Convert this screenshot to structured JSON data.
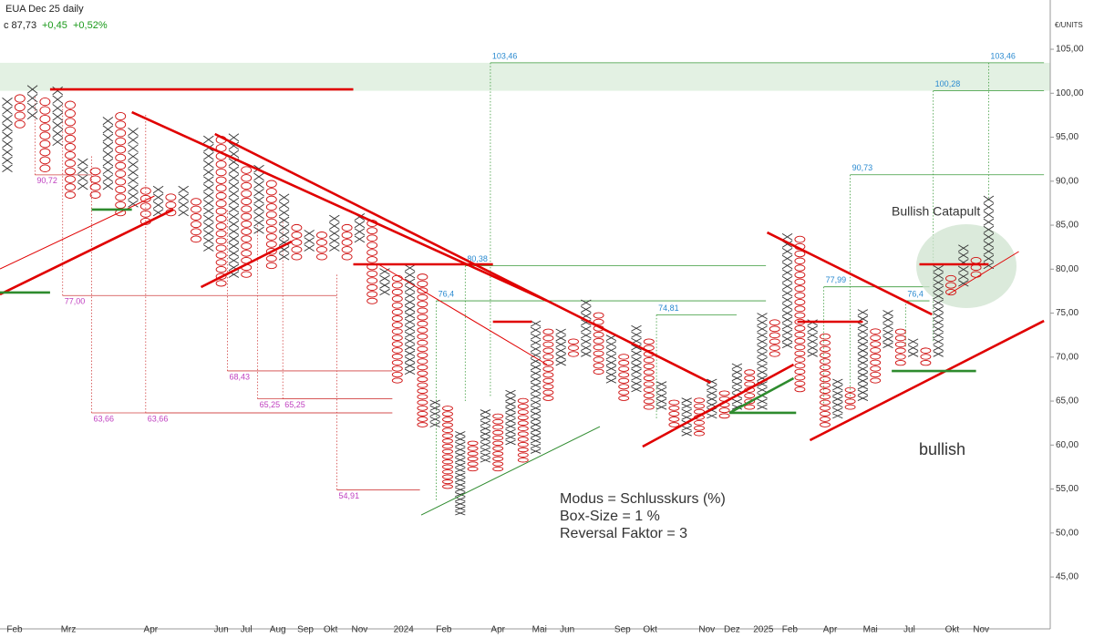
{
  "header": {
    "title": "EUA Dec 25 daily",
    "close": "c 87,73",
    "change": "+0,45",
    "change_pct": "+0,52%"
  },
  "chart_data": {
    "type": "point-and-figure",
    "y_unit": "€/UNITS",
    "ylim": [
      39.1,
      110.6
    ],
    "yticks": [
      {
        "value": 45,
        "label": "45,00"
      },
      {
        "value": 50,
        "label": "50,00"
      },
      {
        "value": 55,
        "label": "55,00"
      },
      {
        "value": 60,
        "label": "60,00"
      },
      {
        "value": 65,
        "label": "65,00"
      },
      {
        "value": 70,
        "label": "70,00"
      },
      {
        "value": 75,
        "label": "75,00"
      },
      {
        "value": 80,
        "label": "80,00"
      },
      {
        "value": 85,
        "label": "85,00"
      },
      {
        "value": 90,
        "label": "90,00"
      },
      {
        "value": 95,
        "label": "95,00"
      },
      {
        "value": 100,
        "label": "100,00"
      },
      {
        "value": 105,
        "label": "105,00"
      }
    ],
    "x_labels": [
      {
        "label": "Feb",
        "col": 0.58
      },
      {
        "label": "Mrz",
        "col": 4.86
      },
      {
        "label": "Apr",
        "col": 11.4
      },
      {
        "label": "Jun",
        "col": 17.0
      },
      {
        "label": "Jul",
        "col": 19.0
      },
      {
        "label": "Aug",
        "col": 21.5
      },
      {
        "label": "Sep",
        "col": 23.7
      },
      {
        "label": "Okt",
        "col": 25.7
      },
      {
        "label": "Nov",
        "col": 28.0
      },
      {
        "label": "2024",
        "col": 31.5
      },
      {
        "label": "Feb",
        "col": 34.7
      },
      {
        "label": "Apr",
        "col": 39.0
      },
      {
        "label": "Mai",
        "col": 42.3
      },
      {
        "label": "Jun",
        "col": 44.5
      },
      {
        "label": "Sep",
        "col": 48.9
      },
      {
        "label": "Okt",
        "col": 51.1
      },
      {
        "label": "Nov",
        "col": 55.6
      },
      {
        "label": "Dez",
        "col": 57.6
      },
      {
        "label": "2025",
        "col": 60.1
      },
      {
        "label": "Feb",
        "col": 62.2
      },
      {
        "label": "Apr",
        "col": 65.4
      },
      {
        "label": "Mai",
        "col": 68.6
      },
      {
        "label": "Jul",
        "col": 71.7
      },
      {
        "label": "Okt",
        "col": 75.1
      },
      {
        "label": "Nov",
        "col": 77.4
      }
    ],
    "x_color": "#333333",
    "o_color": "#d01010",
    "columns": [
      {
        "type": "X",
        "low": 91,
        "high": 99
      },
      {
        "type": "O",
        "low": 96,
        "high": 99
      },
      {
        "type": "X",
        "low": 97,
        "high": 100
      },
      {
        "type": "O",
        "low": 91,
        "high": 99
      },
      {
        "type": "X",
        "low": 94,
        "high": 100
      },
      {
        "type": "O",
        "low": 88,
        "high": 99
      },
      {
        "type": "X",
        "low": 89,
        "high": 92
      },
      {
        "type": "O",
        "low": 88,
        "high": 91
      },
      {
        "type": "X",
        "low": 89,
        "high": 97
      },
      {
        "type": "O",
        "low": 86,
        "high": 97
      },
      {
        "type": "X",
        "low": 87,
        "high": 96
      },
      {
        "type": "O",
        "low": 85,
        "high": 89
      },
      {
        "type": "X",
        "low": 86,
        "high": 89
      },
      {
        "type": "O",
        "low": 86,
        "high": 88
      },
      {
        "type": "X",
        "low": 86,
        "high": 89
      },
      {
        "type": "O",
        "low": 83,
        "high": 88
      },
      {
        "type": "X",
        "low": 82,
        "high": 95
      },
      {
        "type": "O",
        "low": 78,
        "high": 95
      },
      {
        "type": "X",
        "low": 79,
        "high": 95
      },
      {
        "type": "O",
        "low": 79,
        "high": 91
      },
      {
        "type": "X",
        "low": 84,
        "high": 91
      },
      {
        "type": "O",
        "low": 80,
        "high": 90
      },
      {
        "type": "X",
        "low": 81,
        "high": 88
      },
      {
        "type": "O",
        "low": 81,
        "high": 85
      },
      {
        "type": "X",
        "low": 82,
        "high": 84
      },
      {
        "type": "O",
        "low": 81,
        "high": 84
      },
      {
        "type": "X",
        "low": 82,
        "high": 86
      },
      {
        "type": "O",
        "low": 81,
        "high": 85
      },
      {
        "type": "X",
        "low": 83,
        "high": 86
      },
      {
        "type": "O",
        "low": 76,
        "high": 85
      },
      {
        "type": "X",
        "low": 77,
        "high": 80
      },
      {
        "type": "O",
        "low": 67,
        "high": 79
      },
      {
        "type": "X",
        "low": 68,
        "high": 80
      },
      {
        "type": "O",
        "low": 62,
        "high": 79
      },
      {
        "type": "X",
        "low": 62,
        "high": 65
      },
      {
        "type": "O",
        "low": 55,
        "high": 64
      },
      {
        "type": "X",
        "low": 52,
        "high": 61
      },
      {
        "type": "O",
        "low": 57,
        "high": 60
      },
      {
        "type": "X",
        "low": 58,
        "high": 64
      },
      {
        "type": "O",
        "low": 57,
        "high": 63
      },
      {
        "type": "X",
        "low": 60,
        "high": 66
      },
      {
        "type": "O",
        "low": 58,
        "high": 65
      },
      {
        "type": "X",
        "low": 59,
        "high": 74
      },
      {
        "type": "O",
        "low": 65,
        "high": 73
      },
      {
        "type": "X",
        "low": 69,
        "high": 73
      },
      {
        "type": "O",
        "low": 70,
        "high": 72
      },
      {
        "type": "X",
        "low": 70,
        "high": 76
      },
      {
        "type": "O",
        "low": 68,
        "high": 75
      },
      {
        "type": "X",
        "low": 67,
        "high": 72
      },
      {
        "type": "O",
        "low": 65,
        "high": 70
      },
      {
        "type": "X",
        "low": 66,
        "high": 73
      },
      {
        "type": "O",
        "low": 64,
        "high": 72
      },
      {
        "type": "X",
        "low": 64,
        "high": 67
      },
      {
        "type": "O",
        "low": 62,
        "high": 65
      },
      {
        "type": "X",
        "low": 61,
        "high": 65
      },
      {
        "type": "O",
        "low": 61,
        "high": 65
      },
      {
        "type": "X",
        "low": 63,
        "high": 67
      },
      {
        "type": "O",
        "low": 63,
        "high": 66
      },
      {
        "type": "X",
        "low": 64,
        "high": 69
      },
      {
        "type": "O",
        "low": 64,
        "high": 68
      },
      {
        "type": "X",
        "low": 64,
        "high": 75
      },
      {
        "type": "O",
        "low": 70,
        "high": 74
      },
      {
        "type": "X",
        "low": 71,
        "high": 84
      },
      {
        "type": "O",
        "low": 66,
        "high": 83
      },
      {
        "type": "X",
        "low": 70,
        "high": 74
      },
      {
        "type": "O",
        "low": 62,
        "high": 72
      },
      {
        "type": "X",
        "low": 63,
        "high": 67
      },
      {
        "type": "O",
        "low": 64,
        "high": 66
      },
      {
        "type": "X",
        "low": 65,
        "high": 75
      },
      {
        "type": "O",
        "low": 67,
        "high": 73
      },
      {
        "type": "X",
        "low": 71,
        "high": 75
      },
      {
        "type": "O",
        "low": 69,
        "high": 73
      },
      {
        "type": "X",
        "low": 70,
        "high": 72
      },
      {
        "type": "O",
        "low": 69,
        "high": 71
      },
      {
        "type": "X",
        "low": 70,
        "high": 80
      },
      {
        "type": "O",
        "low": 77,
        "high": 79
      },
      {
        "type": "X",
        "low": 78,
        "high": 82
      },
      {
        "type": "O",
        "low": 79,
        "high": 81
      },
      {
        "type": "X",
        "low": 80,
        "high": 88
      }
    ],
    "target_zone": {
      "low": 100.28,
      "high": 103.46,
      "color": "#e3f1e3"
    },
    "trendlines": [
      {
        "from": [
          9.9,
          97.85
        ],
        "to": [
          42.9,
          76.4
        ],
        "color": "#e00000",
        "style": "thick"
      },
      {
        "from": [
          16.5,
          95.37
        ],
        "to": [
          55.9,
          67.08
        ],
        "color": "#e00000",
        "style": "thick"
      },
      {
        "from": [
          -0.58,
          77.13
        ],
        "to": [
          13.2,
          86.77
        ],
        "color": "#e00000",
        "style": "thick"
      },
      {
        "from": [
          15.4,
          77.96
        ],
        "to": [
          22.6,
          83.14
        ],
        "color": "#e00000",
        "style": "thick"
      },
      {
        "from": [
          -0.58,
          80.03
        ],
        "to": [
          11.7,
          88.32
        ],
        "color": "#e00000",
        "style": "thin"
      },
      {
        "from": [
          29.5,
          80.55
        ],
        "to": [
          42.9,
          69.15
        ],
        "color": "#e00000",
        "style": "thin"
      },
      {
        "from": [
          50.5,
          59.82
        ],
        "to": [
          62.5,
          69.15
        ],
        "color": "#e00000",
        "style": "thick"
      },
      {
        "from": [
          60.4,
          84.17
        ],
        "to": [
          73.5,
          74.85
        ],
        "color": "#e00000",
        "style": "thick"
      },
      {
        "from": [
          63.8,
          60.55
        ],
        "to": [
          82.4,
          74.12
        ],
        "color": "#e00000",
        "style": "thick"
      },
      {
        "from": [
          74.8,
          77.13
        ],
        "to": [
          80.4,
          82.0
        ],
        "color": "#e00000",
        "style": "thin"
      },
      {
        "from": [
          32.9,
          52.05
        ],
        "to": [
          47.1,
          62.1
        ],
        "color": "#2e8b2e",
        "style": "thin"
      },
      {
        "from": [
          57.4,
          63.66
        ],
        "to": [
          62.5,
          67.6
        ],
        "color": "#2e8b2e",
        "style": "thick"
      },
      {
        "from": [
          3.4,
          100.44
        ],
        "to": [
          27.5,
          100.44
        ],
        "color": "#e00000",
        "style": "thick"
      },
      {
        "from": [
          27.5,
          80.55
        ],
        "to": [
          38.6,
          80.55
        ],
        "color": "#e00000",
        "style": "thick"
      },
      {
        "from": [
          38.6,
          74.02
        ],
        "to": [
          41.7,
          74.02
        ],
        "color": "#e00000",
        "style": "thick"
      },
      {
        "from": [
          62.8,
          74.02
        ],
        "to": [
          68.0,
          74.02
        ],
        "color": "#e00000",
        "style": "thick"
      },
      {
        "from": [
          72.5,
          80.55
        ],
        "to": [
          78.0,
          80.55
        ],
        "color": "#e00000",
        "style": "thick"
      },
      {
        "from": [
          -0.58,
          77.34
        ],
        "to": [
          3.4,
          77.34
        ],
        "color": "#2e8b2e",
        "style": "thick"
      },
      {
        "from": [
          6.7,
          86.77
        ],
        "to": [
          9.9,
          86.77
        ],
        "color": "#2e8b2e",
        "style": "thick"
      },
      {
        "from": [
          57.4,
          63.66
        ],
        "to": [
          62.7,
          63.66
        ],
        "color": "#2e8b2e",
        "style": "thick"
      },
      {
        "from": [
          70.3,
          68.42
        ],
        "to": [
          77.0,
          68.42
        ],
        "color": "#2e8b2e",
        "style": "thick"
      }
    ],
    "targets_down": {
      "line_color": "#d04040",
      "label_color": "#c040c0",
      "levels": [
        {
          "value": 90.72,
          "label": "90,72",
          "from": 2.2,
          "to": 6.7,
          "base": 99.7
        },
        {
          "value": 77.0,
          "label": "77,00",
          "from": 4.4,
          "to": 26.2,
          "base": 99
        },
        {
          "value": 63.66,
          "label": "63,66",
          "from": 6.7,
          "to": 30.6,
          "base": 93
        },
        {
          "value": 63.66,
          "label": "63,66",
          "from": 11.0,
          "to": 30.6,
          "base": 97.6
        },
        {
          "value": 68.43,
          "label": "68,43",
          "from": 17.5,
          "to": 30.6,
          "base": 86.8
        },
        {
          "value": 65.25,
          "label": "65,25",
          "from": 19.9,
          "to": 30.6,
          "base": 85.2
        },
        {
          "value": 65.25,
          "label": "65,25",
          "from": 21.9,
          "to": 30.6,
          "base": 85.7
        },
        {
          "value": 54.91,
          "label": "54,91",
          "from": 26.2,
          "to": 32.8,
          "base": 79.5
        }
      ]
    },
    "targets_up": {
      "line_color": "#3a9a3a",
      "label_color": "#2a8ad0",
      "levels": [
        {
          "value": 80.38,
          "label": "80,38",
          "from": 36.4,
          "to": 60.3,
          "base": 65
        },
        {
          "value": 76.4,
          "label": "76,4",
          "from": 34.1,
          "to": 60.3,
          "base": 53.6
        },
        {
          "value": 103.46,
          "label": "103,46",
          "from": 38.4,
          "to": 78.0,
          "base": 65.5
        },
        {
          "value": 74.81,
          "label": "74,81",
          "from": 51.6,
          "to": 57.97,
          "base": 62.9
        },
        {
          "value": 77.99,
          "label": "77,99",
          "from": 64.9,
          "to": 73.3,
          "base": 64.2
        },
        {
          "value": 90.73,
          "label": "90,73",
          "from": 67.0,
          "to": 82.4,
          "base": 65
        },
        {
          "value": 76.4,
          "label": "76,4",
          "from": 71.4,
          "to": 73.3,
          "base": 71.2
        },
        {
          "value": 100.28,
          "label": "100,28",
          "from": 73.6,
          "to": 82.4,
          "base": 71.7
        },
        {
          "value": 103.46,
          "label": "103,46",
          "from": 78.0,
          "to": 82.4,
          "base": 87.8
        }
      ]
    },
    "annotations": {
      "pattern": "Bullish Catapult",
      "signal": "bullish",
      "notes": [
        "Modus = Schlusskurs (%)",
        "Box-Size = 1 %",
        "Reversal Faktor = 3"
      ]
    }
  }
}
